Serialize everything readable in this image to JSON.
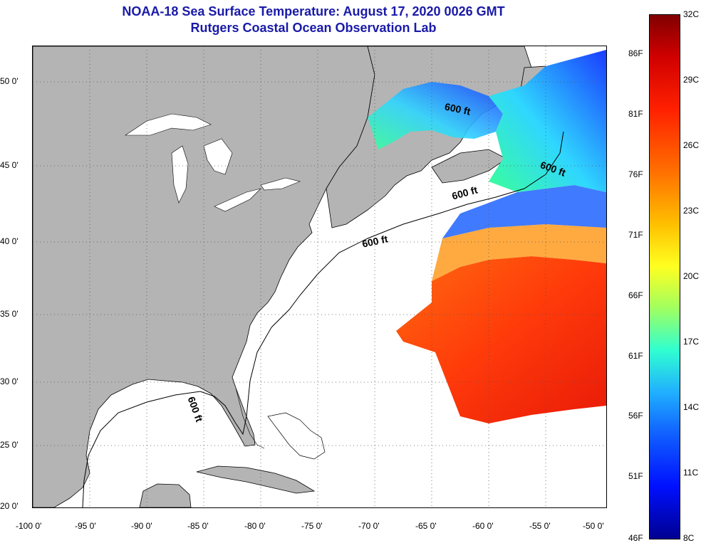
{
  "title": {
    "line1": "NOAA-18 Sea Surface Temperature:  August 17, 2020 0026 GMT",
    "line2": "Rutgers Coastal Ocean Observation Lab"
  },
  "map": {
    "latitude_labels": [
      "50 0'",
      "45 0'",
      "40 0'",
      "35 0'",
      "30 0'",
      "25 0'",
      "20 0'"
    ],
    "longitude_labels": [
      "-100 0'",
      "-95 0'",
      "-90 0'",
      "-85 0'",
      "-80 0'",
      "-75 0'",
      "-70 0'",
      "-65 0'",
      "-60 0'",
      "-55 0'",
      "-50 0'"
    ],
    "contour_label": "600 ft",
    "land_color": "#b4b4b4",
    "ocean_color": "#ffffff",
    "grid": "dotted"
  },
  "colorbar": {
    "fahrenheit_labels": [
      "86F",
      "81F",
      "76F",
      "71F",
      "66F",
      "61F",
      "56F",
      "51F",
      "46F"
    ],
    "celsius_labels": [
      "32C",
      "29C",
      "26C",
      "23C",
      "20C",
      "17C",
      "14C",
      "11C",
      "8C"
    ],
    "min_celsius": 8,
    "max_celsius": 32
  }
}
